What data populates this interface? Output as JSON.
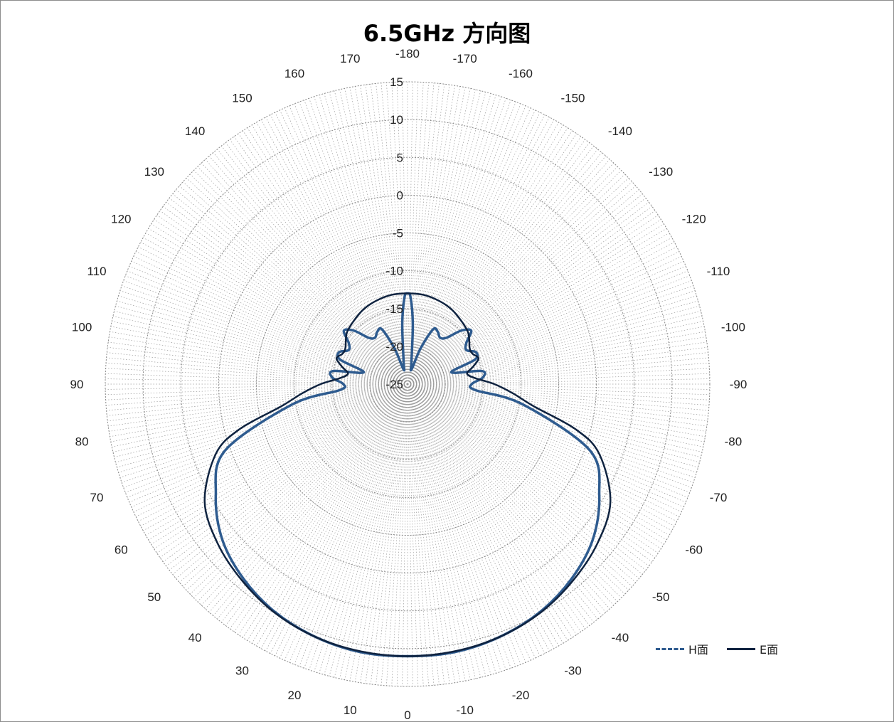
{
  "chart_data": {
    "type": "polar_line",
    "title": "6.5GHz 方向图",
    "radial_axis": {
      "min": -25,
      "max": 15,
      "ticks": [
        -25,
        -20,
        -15,
        -10,
        -5,
        0,
        5,
        10,
        15
      ],
      "tick_labels": [
        "-25",
        "-20",
        "-15",
        "-10",
        "-5",
        "0",
        "5",
        "10",
        "15"
      ]
    },
    "angular_axis": {
      "direction": "zero at bottom, positive angles clockwise toward left",
      "ticks": [
        0,
        10,
        20,
        30,
        40,
        50,
        60,
        70,
        80,
        90,
        100,
        110,
        120,
        130,
        140,
        150,
        160,
        170,
        -180,
        -170,
        -160,
        -150,
        -140,
        -130,
        -120,
        -110,
        -100,
        -90,
        -80,
        -70,
        -60,
        -50,
        -40,
        -30,
        -20,
        -10
      ],
      "tick_labels": [
        "0",
        "10",
        "20",
        "30",
        "40",
        "50",
        "60",
        "70",
        "80",
        "90",
        "100",
        "110",
        "120",
        "130",
        "140",
        "150",
        "160",
        "170",
        "-180",
        "-170",
        "-160",
        "-150",
        "-140",
        "-130",
        "-120",
        "-110",
        "-100",
        "-90",
        "-80",
        "-70",
        "-60",
        "-50",
        "-40",
        "-30",
        "-20",
        "-10"
      ],
      "minor_spokes_degrees": 1
    },
    "grid": true,
    "legend_position": "bottom-right",
    "series": [
      {
        "name": "H面",
        "color": "#2e5b8f",
        "line_style": "dashed",
        "angles": [
          0,
          10,
          20,
          30,
          40,
          50,
          60,
          70,
          80,
          85,
          90,
          95,
          100,
          105,
          110,
          115,
          120,
          125,
          130,
          135,
          140,
          145,
          150,
          155,
          160,
          165,
          170,
          175,
          178,
          180,
          182,
          185,
          190,
          195,
          200,
          205,
          210,
          215,
          220,
          225,
          230,
          235,
          240,
          245,
          250,
          255,
          260,
          265,
          270,
          275,
          280,
          290,
          300,
          310,
          320,
          330,
          340,
          350
        ],
        "values": [
          11.0,
          11.0,
          10.6,
          9.9,
          8.7,
          7.0,
          4.3,
          0.7,
          -9.5,
          -16.0,
          -16.5,
          -15.0,
          -15.0,
          -19.0,
          -15.5,
          -15.0,
          -16.0,
          -15.5,
          -14.0,
          -15.0,
          -17.0,
          -17.5,
          -17.0,
          -17.0,
          -20.0,
          -23.0,
          -22.0,
          -17.0,
          -13.5,
          -13.0,
          -13.5,
          -17.0,
          -22.0,
          -23.0,
          -20.0,
          -17.0,
          -17.0,
          -17.5,
          -17.0,
          -15.0,
          -14.0,
          -15.5,
          -16.0,
          -15.0,
          -15.5,
          -19.0,
          -15.0,
          -15.0,
          -16.5,
          -16.0,
          -9.5,
          0.7,
          4.3,
          7.0,
          8.7,
          9.9,
          10.6,
          11.0
        ]
      },
      {
        "name": "E面",
        "color": "#0f2340",
        "line_style": "solid",
        "angles": [
          0,
          10,
          20,
          30,
          40,
          50,
          60,
          70,
          75,
          80,
          85,
          90,
          95,
          100,
          105,
          110,
          115,
          120,
          130,
          140,
          150,
          160,
          170,
          180,
          190,
          200,
          210,
          220,
          230,
          240,
          245,
          250,
          255,
          260,
          265,
          270,
          275,
          280,
          285,
          290,
          300,
          310,
          320,
          330,
          340,
          350
        ],
        "values": [
          11.0,
          10.9,
          10.6,
          10.0,
          9.0,
          7.8,
          6.0,
          2.0,
          -2.0,
          -8.0,
          -11.0,
          -13.5,
          -16.0,
          -17.0,
          -16.0,
          -15.0,
          -15.5,
          -15.5,
          -14.5,
          -14.0,
          -13.5,
          -13.2,
          -13.0,
          -13.0,
          -13.0,
          -13.2,
          -13.5,
          -14.0,
          -14.5,
          -15.5,
          -15.5,
          -15.0,
          -16.0,
          -17.0,
          -16.0,
          -13.5,
          -11.0,
          -8.0,
          -2.0,
          2.0,
          6.0,
          7.8,
          9.0,
          10.0,
          10.6,
          10.9
        ]
      }
    ]
  }
}
